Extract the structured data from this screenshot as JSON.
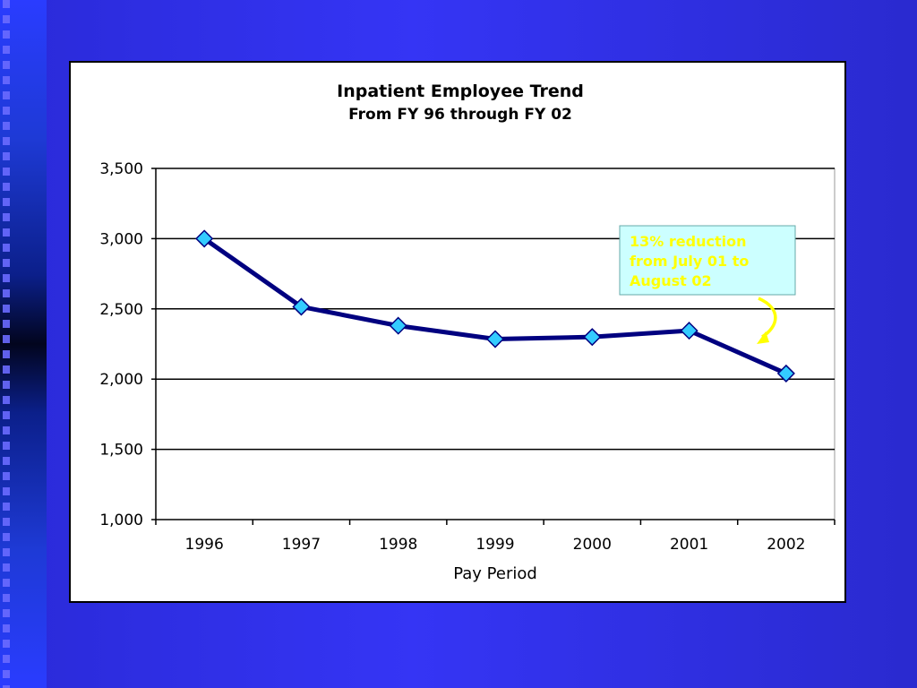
{
  "chart_data": {
    "type": "line",
    "title": "Inpatient Employee Trend",
    "subtitle": "From FY 96 through FY 02",
    "xlabel": "Pay Period",
    "ylabel": "",
    "categories": [
      "1996",
      "1997",
      "1998",
      "1999",
      "2000",
      "2001",
      "2002"
    ],
    "series": [
      {
        "values": [
          3000,
          2515,
          2380,
          2285,
          2300,
          2345,
          2040
        ]
      }
    ],
    "ylim": [
      1000,
      3500
    ],
    "yticks": [
      1000,
      1500,
      2000,
      2500,
      3000,
      3500
    ],
    "ytick_labels": [
      "1,000",
      "1,500",
      "2,000",
      "2,500",
      "3,000",
      "3,500"
    ],
    "grid": true,
    "line_color": "#000080",
    "marker_color": "#33ccff",
    "annotation": {
      "text_lines": [
        "13% reduction",
        "from July 01 to",
        "August 02"
      ],
      "text_color": "#ffff00",
      "box_color": "#ccffff",
      "arrow_color": "#ffff00"
    }
  }
}
